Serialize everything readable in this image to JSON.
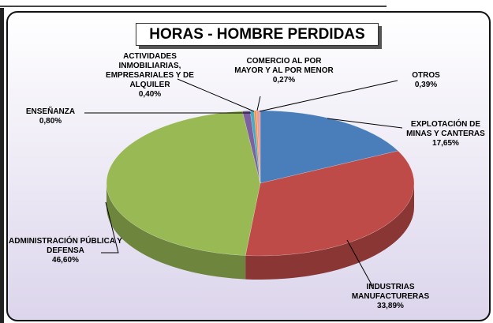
{
  "chart_data": {
    "type": "pie",
    "title": "HORAS - HOMBRE PERDIDAS",
    "categories": [
      "EXPLOTACIÓN DE MINAS Y CANTERAS",
      "INDUSTRIAS MANUFACTURERAS",
      "ADMINISTRACIÓN PÚBLICA Y DEFENSA",
      "ENSEÑANZA",
      "ACTIVIDADES INMOBILIARIAS, EMPRESARIALES Y DE ALQUILER",
      "COMERCIO AL POR MAYOR Y AL POR MENOR",
      "OTROS"
    ],
    "values": [
      17.65,
      33.89,
      46.6,
      0.8,
      0.4,
      0.27,
      0.39
    ],
    "value_labels": [
      "17,65%",
      "33,89%",
      "46,60%",
      "0,80%",
      "0,40%",
      "0,27%",
      "0,39%"
    ],
    "colors": [
      "#4a7ebb",
      "#be4b48",
      "#98b954",
      "#7d60a0",
      "#46aac5",
      "#f79646",
      "#e6a0a0"
    ]
  }
}
